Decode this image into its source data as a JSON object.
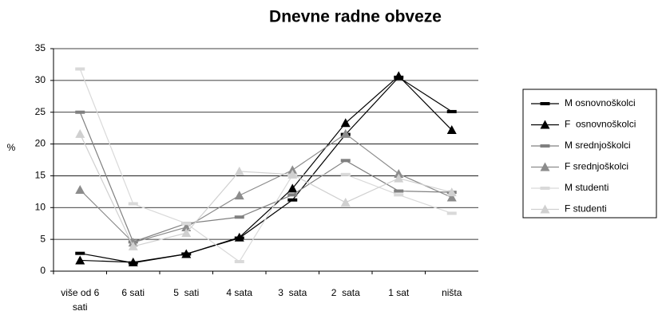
{
  "chart_data": {
    "type": "line",
    "title": "Dnevne radne obveze",
    "y_label": "%",
    "categories": [
      "više od 6 sati",
      "6 sati",
      "5  sati",
      "4 sata",
      "3  sata",
      "2  sata",
      "1 sat",
      "ništa"
    ],
    "series": [
      {
        "name": "M osnovnoškolci",
        "color": "#000000",
        "marker": "dash",
        "values": [
          2.8,
          1.3,
          2.7,
          5.2,
          11.2,
          21.5,
          30.5,
          25.1
        ]
      },
      {
        "name": "F  osnovnoškolci",
        "color": "#000000",
        "marker": "triangle",
        "values": [
          1.7,
          1.4,
          2.7,
          5.3,
          13,
          23.3,
          30.7,
          22.2
        ]
      },
      {
        "name": "M srednjoškolci",
        "color": "#808080",
        "marker": "dash",
        "values": [
          25,
          4.6,
          7.5,
          8.5,
          12,
          17.4,
          12.6,
          12.4
        ]
      },
      {
        "name": "F srednjoškolci",
        "color": "#8c8c8c",
        "marker": "triangle",
        "values": [
          12.8,
          4.5,
          6.9,
          11.9,
          15.9,
          21.6,
          15.3,
          11.6
        ]
      },
      {
        "name": "M studenti",
        "color": "#d9d9d9",
        "marker": "dash",
        "values": [
          31.8,
          10.6,
          7.5,
          1.5,
          15.1,
          15.2,
          12,
          9.1
        ]
      },
      {
        "name": "F studenti",
        "color": "#d0d0d0",
        "marker": "triangle",
        "values": [
          21.6,
          3.9,
          6,
          15.7,
          15.2,
          10.8,
          14.6,
          12.4
        ]
      }
    ],
    "ylim": [
      0,
      35
    ],
    "yticks": [
      0,
      5,
      10,
      15,
      20,
      25,
      30,
      35
    ],
    "grid": true,
    "legend": "right"
  }
}
